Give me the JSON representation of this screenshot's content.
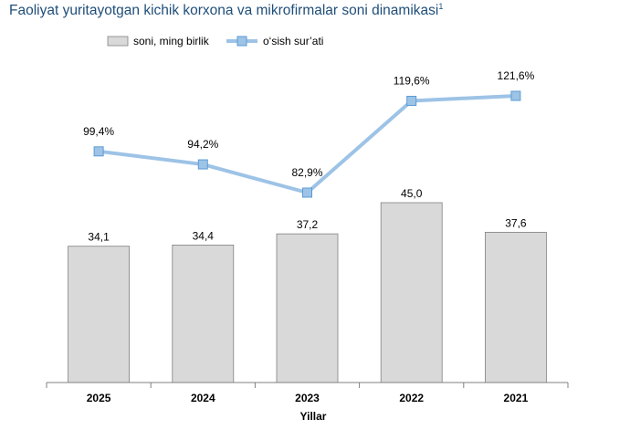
{
  "chart_data": {
    "type": "bar+line",
    "title": "Faoliyat yuritayotgan kichik korxona va mikrofirmalar soni dinamikasi",
    "title_sup": "1",
    "xlabel": "Yillar",
    "categories": [
      "2025",
      "2024",
      "2023",
      "2022",
      "2021"
    ],
    "series": [
      {
        "name": "soni, ming birlik",
        "type": "bar",
        "values": [
          34.1,
          34.4,
          37.2,
          45.0,
          37.6
        ],
        "labels": [
          "34,1",
          "34,4",
          "37,2",
          "45,0",
          "37,6"
        ],
        "color": "#d9d9d9"
      },
      {
        "name": "o‘sish sur’ati",
        "type": "line",
        "values": [
          99.4,
          94.2,
          82.9,
          119.6,
          121.6
        ],
        "labels": [
          "99,4%",
          "94,2%",
          "82,9%",
          "119,6%",
          "121,6%"
        ],
        "color": "#9dc3e6"
      }
    ],
    "legend": "top-left",
    "grid": false
  }
}
